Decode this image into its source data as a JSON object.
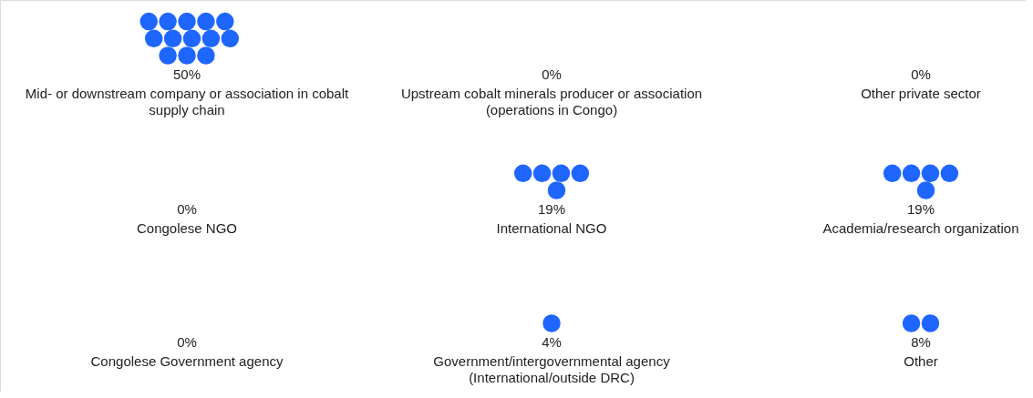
{
  "chart_data": {
    "type": "other",
    "categories": [
      "Mid- or downstream company or association in cobalt\nsupply chain",
      "Upstream cobalt minerals producer or association\n(operations in Congo)",
      "Other private sector",
      "Congolese NGO",
      "International NGO",
      "Academia/research organization",
      "Congolese Government agency",
      "Government/intergovernmental agency\n(International/outside DRC)",
      "Other"
    ],
    "values": [
      50,
      0,
      0,
      0,
      19,
      19,
      0,
      4,
      8
    ],
    "value_labels": [
      "50%",
      "0%",
      "0%",
      "0%",
      "19%",
      "19%",
      "0%",
      "4%",
      "8%"
    ],
    "color": "#1f66ff"
  }
}
